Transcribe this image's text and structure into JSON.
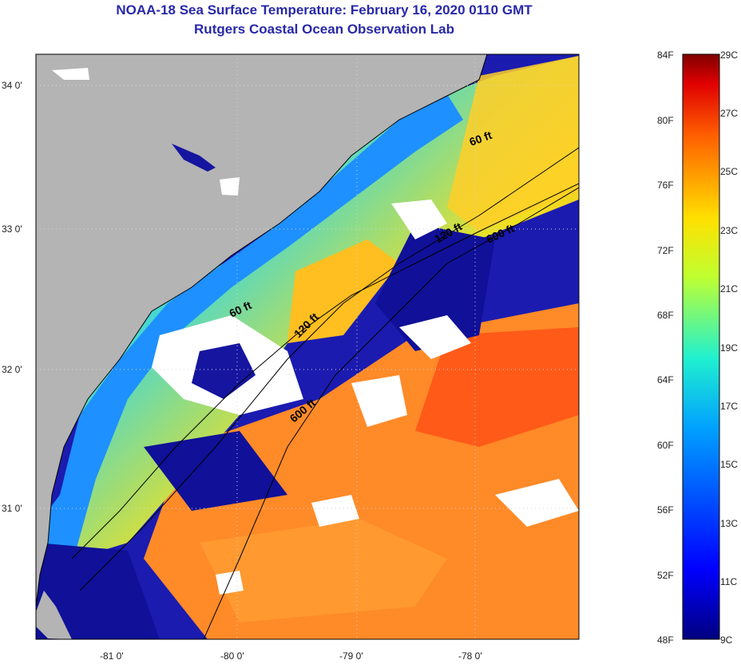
{
  "title": "NOAA-18 Sea Surface Temperature:  February 16, 2020 0110 GMT",
  "subtitle": "Rutgers Coastal Ocean Observation Lab",
  "lat_labels": [
    "34 0'",
    "33 0'",
    "32 0'",
    "31 0'"
  ],
  "lon_labels": [
    "-81 0'",
    "-80 0'",
    "-79 0'",
    "-78 0'"
  ],
  "contours": [
    "60 ft",
    "120 ft",
    "600 ft",
    "60 ft",
    "120 ft",
    "600 ft"
  ],
  "colorbar": {
    "f_labels": [
      "84F",
      "80F",
      "76F",
      "72F",
      "68F",
      "64F",
      "60F",
      "56F",
      "52F",
      "48F"
    ],
    "c_labels": [
      "29C",
      "27C",
      "25C",
      "23C",
      "21C",
      "19C",
      "17C",
      "15C",
      "13C",
      "11C",
      "9C"
    ]
  },
  "colors": {
    "title": "#2828a8",
    "land": "#b4b4b4",
    "cloud": "#ffffff"
  }
}
